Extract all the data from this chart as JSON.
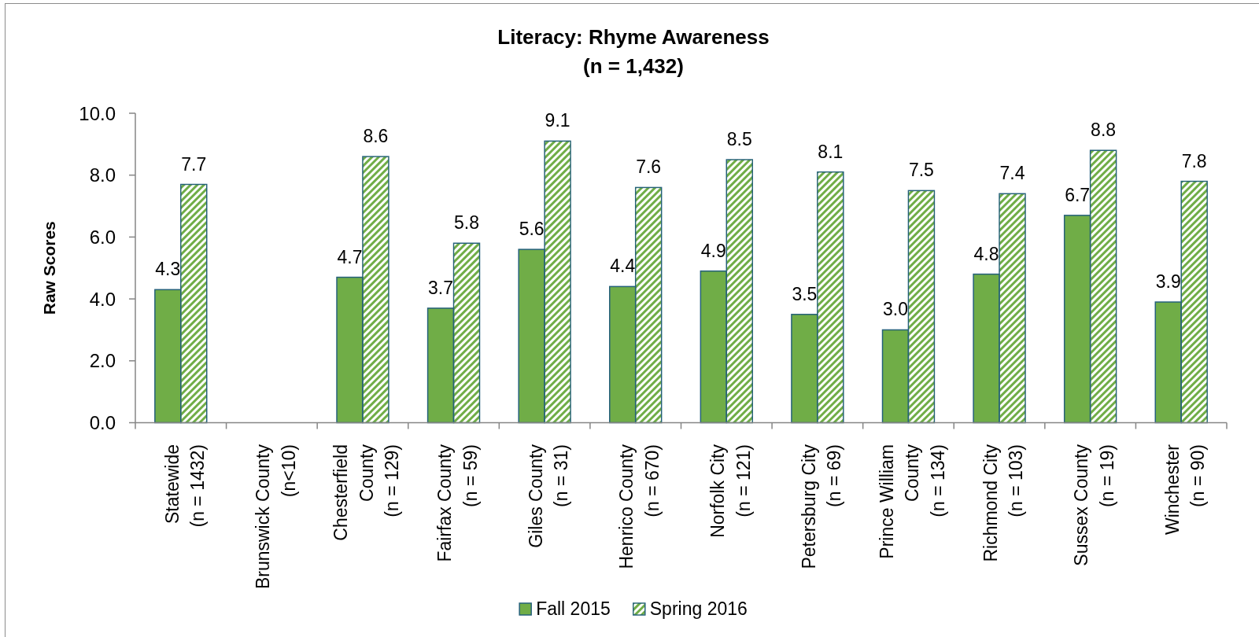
{
  "chart_data": {
    "type": "bar",
    "title": "Literacy: Rhyme Awareness\n(n = 1,432)",
    "ylabel": "Raw Scores",
    "categories": [
      "Statewide\n(n = 1432)",
      "Brunswick County\n(n<10)",
      "Chesterfield\nCounty\n(n = 129)",
      "Fairfax County\n(n = 59)",
      "Giles County\n(n = 31)",
      "Henrico County\n(n = 670)",
      "Norfolk City\n(n = 121)",
      "Petersburg City\n(n = 69)",
      "Prince William\nCounty\n(n = 134)",
      "Richmond City\n(n = 103)",
      "Sussex County\n(n = 19)",
      "Winchester\n(n = 90)"
    ],
    "series": [
      {
        "name": "Fall 2015",
        "color": "#70ad47",
        "values": [
          4.3,
          null,
          4.7,
          3.7,
          5.6,
          4.4,
          4.9,
          3.5,
          3.0,
          4.8,
          6.7,
          3.9
        ],
        "value_labels": [
          "4.3",
          null,
          "4.7",
          "3.7",
          "5.6",
          "4.4",
          "4.9",
          "3.5",
          "3.0",
          "4.8",
          "6.7",
          "3.9"
        ]
      },
      {
        "name": "Spring 2016",
        "color": "#70ad47",
        "values": [
          7.7,
          null,
          8.6,
          5.8,
          9.1,
          7.6,
          8.5,
          8.1,
          7.5,
          7.4,
          8.8,
          7.8
        ],
        "value_labels": [
          "7.7",
          null,
          "8.6",
          "5.8",
          "9.1",
          "7.6",
          "8.5",
          "8.1",
          "7.5",
          "7.4",
          "8.8",
          "7.8"
        ]
      }
    ],
    "ylim": [
      0,
      10
    ],
    "yticks": [
      {
        "value": 0,
        "label": "0.0"
      },
      {
        "value": 2,
        "label": "2.0"
      },
      {
        "value": 4,
        "label": "4.0"
      },
      {
        "value": 6,
        "label": "6.0"
      },
      {
        "value": 8,
        "label": "8.0"
      },
      {
        "value": 10,
        "label": "10.0"
      }
    ],
    "legend": "bottom"
  }
}
